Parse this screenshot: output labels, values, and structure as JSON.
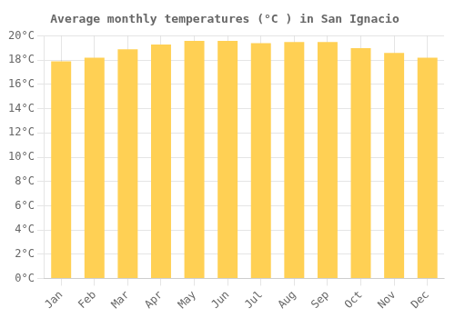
{
  "chart_data": {
    "type": "bar",
    "title": "Average monthly temperatures (°C ) in San Ignacio",
    "categories": [
      "Jan",
      "Feb",
      "Mar",
      "Apr",
      "May",
      "Jun",
      "Jul",
      "Aug",
      "Sep",
      "Oct",
      "Nov",
      "Dec"
    ],
    "values": [
      17.9,
      18.2,
      18.9,
      19.3,
      19.6,
      19.6,
      19.4,
      19.5,
      19.5,
      19.0,
      18.6,
      18.2
    ],
    "color": "#FFD054",
    "ylim": [
      0,
      20
    ],
    "yticks": [
      {
        "value": 0,
        "label": "0°C"
      },
      {
        "value": 2,
        "label": "2°C"
      },
      {
        "value": 4,
        "label": "4°C"
      },
      {
        "value": 6,
        "label": "6°C"
      },
      {
        "value": 8,
        "label": "8°C"
      },
      {
        "value": 10,
        "label": "10°C"
      },
      {
        "value": 12,
        "label": "12°C"
      },
      {
        "value": 14,
        "label": "14°C"
      },
      {
        "value": 16,
        "label": "16°C"
      },
      {
        "value": 18,
        "label": "18°C"
      },
      {
        "value": 20,
        "label": "20°C"
      }
    ],
    "grid": true
  }
}
